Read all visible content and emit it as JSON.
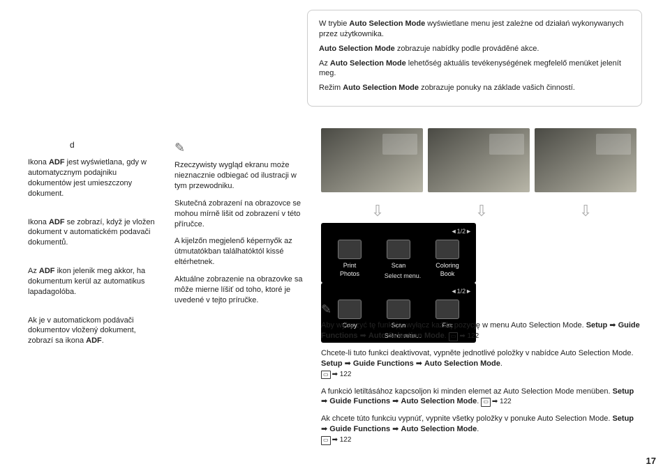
{
  "top": {
    "pl": "W trybie <b>Auto Selection Mode</b> wyświetlane menu jest zależne od działań wykonywanych przez użytkownika.",
    "cs": "<b>Auto Selection Mode</b> zobrazuje nabídky podle prováděné akce.",
    "hu": "Az <b>Auto Selection Mode</b> lehetőség aktuális tevékenységének megfelelő menüket jelenít meg.",
    "sk": "Režim <b>Auto Selection Mode</b> zobrazuje ponuky na základe vašich činností."
  },
  "left": {
    "d": "d",
    "pl": "Ikona <b>ADF</b> jest wyświetlana, gdy w automatycznym podajniku dokumentów jest umieszczony dokument.",
    "cs": "Ikona <b>ADF</b> se zobrazí, když je vložen dokument v automatickém podavači dokumentů.",
    "hu": "Az <b>ADF</b> ikon jelenik meg akkor, ha dokumentum kerül az automatikus lapadagolóba.",
    "sk": "Ak je v automatickom podávači dokumentov vložený dokument, zobrazí sa ikona <b>ADF</b>."
  },
  "mid": {
    "pl": "Rzeczywisty wygląd ekranu może nieznacznie odbiegać od ilustracji w tym przewodniku.",
    "cs": "Skutečná zobrazení na obrazovce se mohou mírně lišit od zobrazení v této příručce.",
    "hu": "A kijelzőn megjelenő képernyők az útmutatókban találhatóktól kissé eltérhetnek.",
    "sk": "Aktuálne zobrazenie na obrazovke sa môže mierne líšiť od toho, ktoré je uvedené v tejto príručke."
  },
  "screen1": {
    "pager": "◄1/2►",
    "items": [
      "Print\nPhotos",
      "Scan",
      "Coloring\nBook"
    ],
    "footer": "Select menu."
  },
  "screen2": {
    "pager": "◄1/2►",
    "items": [
      "Copy",
      "Scan",
      "Fax"
    ],
    "footer": "Select menu."
  },
  "note": {
    "pl": "Aby wyłączyć tę funkcję, wyłącz każdą pozycję w menu Auto Selection Mode. <b>Setup</b> ➡ <b>Guide Functions</b> ➡ <b>Auto Selection Mode</b>. ",
    "cs": "Chcete-li tuto funkci deaktivovat, vypněte jednotlivé položky v nabídce Auto Selection Mode. <b>Setup</b> ➡ <b>Guide Functions</b> ➡ <b>Auto Selection Mode</b>. ",
    "hu": "A funkció letiltásához kapcsoljon ki minden elemet az Auto Selection Mode menüben. <b>Setup</b> ➡ <b>Guide Functions</b> ➡ <b>Auto Selection Mode</b>. ",
    "sk": "Ak chcete túto funkciu vypnúť, vypnite všetky položky v ponuke Auto Selection Mode. <b>Setup</b> ➡ <b>Guide Functions</b> ➡ <b>Auto Selection Mode</b>. ",
    "ref": "122"
  },
  "page": "17"
}
